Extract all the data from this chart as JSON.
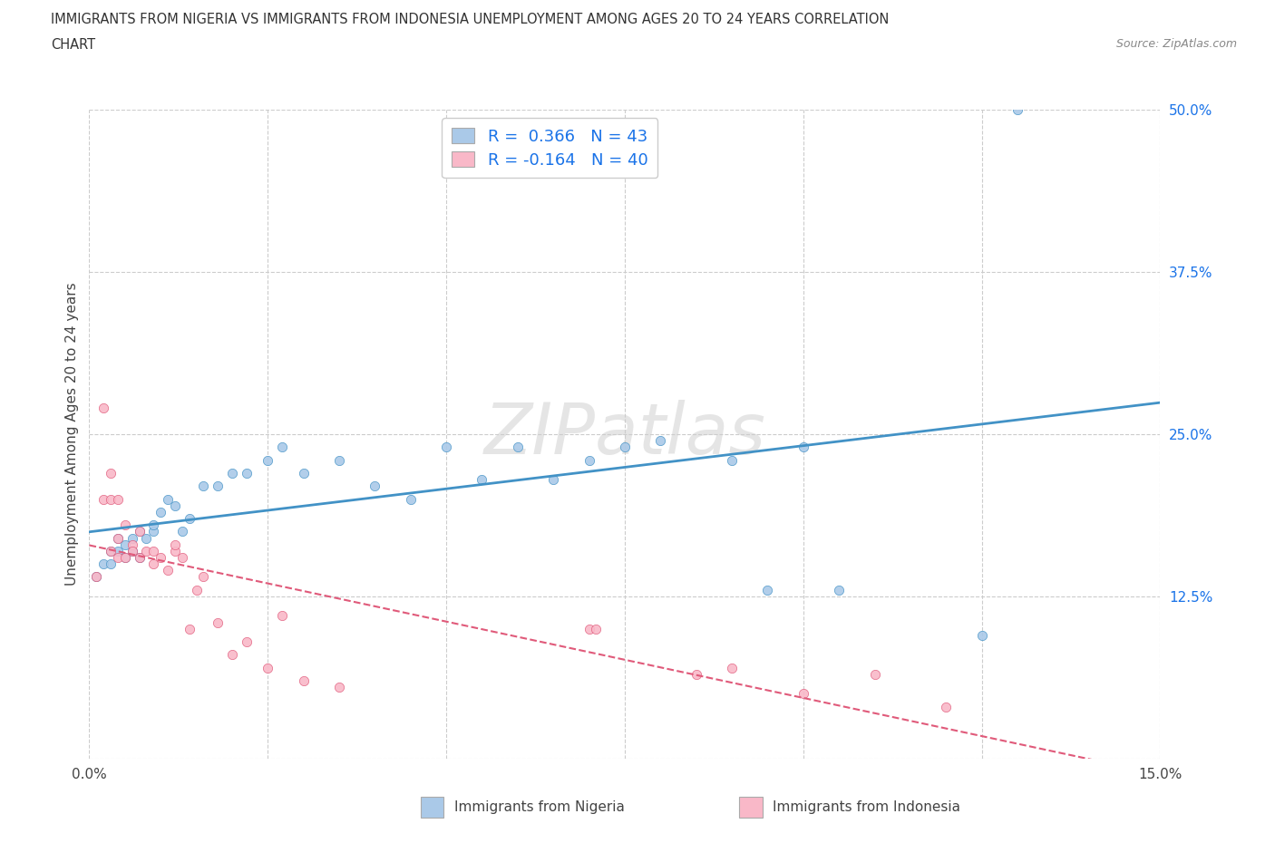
{
  "title_line1": "IMMIGRANTS FROM NIGERIA VS IMMIGRANTS FROM INDONESIA UNEMPLOYMENT AMONG AGES 20 TO 24 YEARS CORRELATION",
  "title_line2": "CHART",
  "source": "Source: ZipAtlas.com",
  "ylabel": "Unemployment Among Ages 20 to 24 years",
  "xlim": [
    0.0,
    0.15
  ],
  "ylim": [
    0.0,
    0.5
  ],
  "xticks": [
    0.0,
    0.025,
    0.05,
    0.075,
    0.1,
    0.125,
    0.15
  ],
  "yticks": [
    0.0,
    0.125,
    0.25,
    0.375,
    0.5
  ],
  "nigeria_color": "#aac9e8",
  "nigeria_color_line": "#4292c6",
  "indonesia_color": "#f9b8c8",
  "indonesia_color_line": "#e05a7a",
  "nigeria_R": 0.366,
  "nigeria_N": 43,
  "indonesia_R": -0.164,
  "indonesia_N": 40,
  "legend_label1": "Immigrants from Nigeria",
  "legend_label2": "Immigrants from Indonesia",
  "watermark": "ZIPatlas",
  "nigeria_x": [
    0.001,
    0.002,
    0.003,
    0.003,
    0.004,
    0.004,
    0.005,
    0.005,
    0.006,
    0.006,
    0.007,
    0.007,
    0.008,
    0.009,
    0.009,
    0.01,
    0.011,
    0.012,
    0.013,
    0.014,
    0.016,
    0.018,
    0.02,
    0.022,
    0.025,
    0.027,
    0.03,
    0.035,
    0.04,
    0.045,
    0.05,
    0.055,
    0.06,
    0.065,
    0.07,
    0.075,
    0.08,
    0.09,
    0.095,
    0.1,
    0.105,
    0.125,
    0.13
  ],
  "nigeria_y": [
    0.14,
    0.15,
    0.16,
    0.15,
    0.16,
    0.17,
    0.155,
    0.165,
    0.16,
    0.17,
    0.155,
    0.175,
    0.17,
    0.175,
    0.18,
    0.19,
    0.2,
    0.195,
    0.175,
    0.185,
    0.21,
    0.21,
    0.22,
    0.22,
    0.23,
    0.24,
    0.22,
    0.23,
    0.21,
    0.2,
    0.24,
    0.215,
    0.24,
    0.215,
    0.23,
    0.24,
    0.245,
    0.23,
    0.13,
    0.24,
    0.13,
    0.095,
    0.5
  ],
  "indonesia_x": [
    0.001,
    0.002,
    0.002,
    0.003,
    0.003,
    0.003,
    0.004,
    0.004,
    0.004,
    0.005,
    0.005,
    0.006,
    0.006,
    0.007,
    0.007,
    0.008,
    0.009,
    0.009,
    0.01,
    0.011,
    0.012,
    0.012,
    0.013,
    0.014,
    0.015,
    0.016,
    0.018,
    0.02,
    0.022,
    0.025,
    0.027,
    0.03,
    0.035,
    0.07,
    0.071,
    0.085,
    0.09,
    0.1,
    0.11,
    0.12
  ],
  "indonesia_y": [
    0.14,
    0.27,
    0.2,
    0.22,
    0.2,
    0.16,
    0.155,
    0.17,
    0.2,
    0.155,
    0.18,
    0.165,
    0.16,
    0.155,
    0.175,
    0.16,
    0.15,
    0.16,
    0.155,
    0.145,
    0.16,
    0.165,
    0.155,
    0.1,
    0.13,
    0.14,
    0.105,
    0.08,
    0.09,
    0.07,
    0.11,
    0.06,
    0.055,
    0.1,
    0.1,
    0.065,
    0.07,
    0.05,
    0.065,
    0.04
  ]
}
